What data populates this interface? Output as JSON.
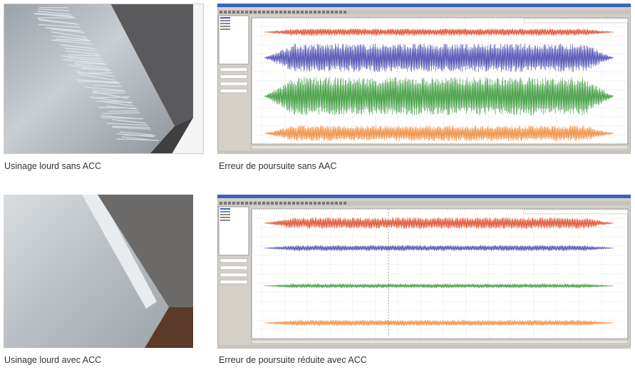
{
  "figures": [
    {
      "caption": "Usinage lourd sans ACC"
    },
    {
      "caption": "Erreur de poursuite sans AAC"
    },
    {
      "caption": "Usinage lourd avec ACC"
    },
    {
      "caption": "Erreur de poursuite réduite avec ACC"
    }
  ]
}
